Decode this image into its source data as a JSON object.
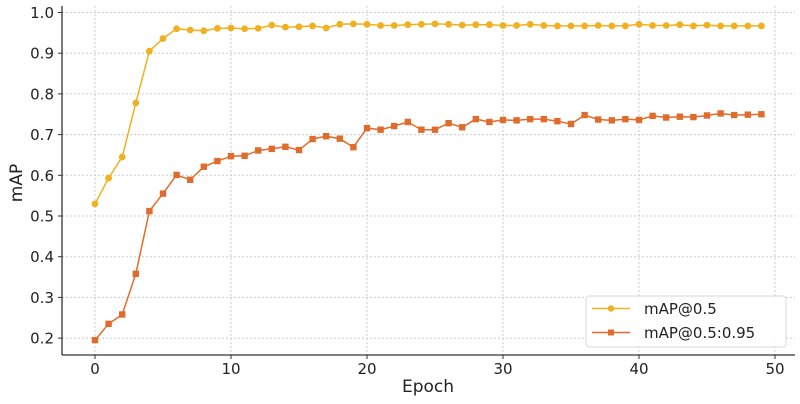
{
  "chart_data": {
    "type": "line",
    "title": "",
    "xlabel": "Epoch",
    "ylabel": "mAP",
    "xlim": [
      -2.5,
      51.5
    ],
    "ylim": [
      0.155,
      1.01
    ],
    "xticks": [
      0,
      10,
      20,
      30,
      40,
      50
    ],
    "yticks": [
      0.2,
      0.3,
      0.4,
      0.5,
      0.6,
      0.7,
      0.8,
      0.9,
      1.0
    ],
    "xtick_labels": [
      "0",
      "10",
      "20",
      "30",
      "40",
      "50"
    ],
    "ytick_labels": [
      "0.2",
      "0.3",
      "0.4",
      "0.5",
      "0.6",
      "0.7",
      "0.8",
      "0.9",
      "1.0"
    ],
    "grid": true,
    "legend_position": "lower right",
    "x": [
      0,
      1,
      2,
      3,
      4,
      5,
      6,
      7,
      8,
      9,
      10,
      11,
      12,
      13,
      14,
      15,
      16,
      17,
      18,
      19,
      20,
      21,
      22,
      23,
      24,
      25,
      26,
      27,
      28,
      29,
      30,
      31,
      32,
      33,
      34,
      35,
      36,
      37,
      38,
      39,
      40,
      41,
      42,
      43,
      44,
      45,
      46,
      47,
      48,
      49
    ],
    "series": [
      {
        "name": "mAP@0.5",
        "color": "#f0b020",
        "marker": "circle",
        "values": [
          0.53,
          0.593,
          0.645,
          0.778,
          0.905,
          0.936,
          0.96,
          0.957,
          0.955,
          0.961,
          0.962,
          0.96,
          0.961,
          0.969,
          0.964,
          0.965,
          0.967,
          0.962,
          0.971,
          0.972,
          0.971,
          0.968,
          0.968,
          0.97,
          0.971,
          0.972,
          0.971,
          0.969,
          0.97,
          0.97,
          0.968,
          0.968,
          0.971,
          0.968,
          0.967,
          0.967,
          0.967,
          0.968,
          0.967,
          0.967,
          0.971,
          0.968,
          0.968,
          0.97,
          0.967,
          0.969,
          0.967,
          0.967,
          0.967,
          0.967
        ]
      },
      {
        "name": "mAP@0.5:0.95",
        "color": "#e06c2c",
        "marker": "square",
        "values": [
          0.195,
          0.235,
          0.258,
          0.358,
          0.512,
          0.555,
          0.601,
          0.589,
          0.621,
          0.635,
          0.647,
          0.648,
          0.661,
          0.665,
          0.67,
          0.662,
          0.689,
          0.696,
          0.69,
          0.669,
          0.716,
          0.712,
          0.721,
          0.731,
          0.712,
          0.712,
          0.728,
          0.718,
          0.738,
          0.731,
          0.736,
          0.735,
          0.738,
          0.738,
          0.733,
          0.726,
          0.748,
          0.737,
          0.735,
          0.738,
          0.736,
          0.746,
          0.742,
          0.744,
          0.743,
          0.747,
          0.752,
          0.748,
          0.749,
          0.75
        ]
      }
    ]
  }
}
